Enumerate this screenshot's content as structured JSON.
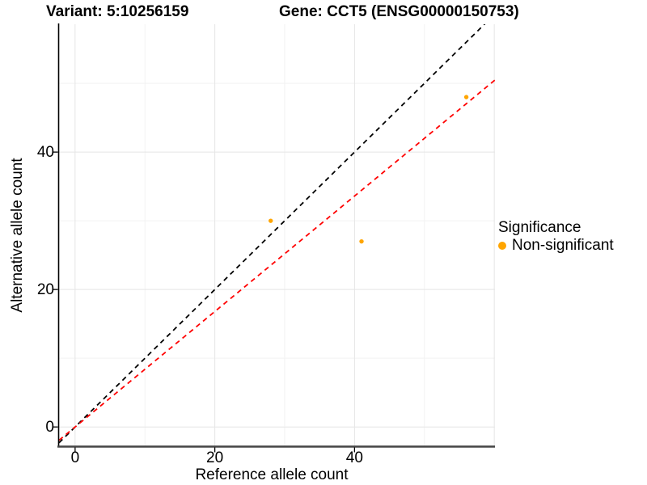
{
  "chart_data": {
    "type": "scatter",
    "title_variant": "Variant: 5:10256159",
    "title_gene": "Gene: CCT5 (ENSG00000150753)",
    "xlabel": "Reference allele count",
    "ylabel": "Alternative allele count",
    "xlim": [
      -2.3,
      60.1
    ],
    "ylim": [
      -2.8,
      58.6
    ],
    "x_ticks": [
      0,
      20,
      40
    ],
    "y_ticks": [
      0,
      20,
      40
    ],
    "x_minor_ticks": [
      10,
      30,
      50
    ],
    "y_minor_ticks": [
      10,
      30,
      50
    ],
    "grid": true,
    "series": [
      {
        "name": "Non-significant",
        "color": "#FFA500",
        "point_radius": 2.7,
        "points": [
          {
            "x": 28,
            "y": 30
          },
          {
            "x": 41,
            "y": 27
          },
          {
            "x": 56,
            "y": 48
          }
        ]
      }
    ],
    "reference_lines": [
      {
        "name": "identity-line",
        "slope": 1.0,
        "intercept": 0,
        "color": "#000000",
        "style": "dashed"
      },
      {
        "name": "allele-ratio-line",
        "slope": 0.84,
        "intercept": 0,
        "color": "#FF0000",
        "style": "dashed"
      }
    ],
    "legend": {
      "title": "Significance",
      "position": "right",
      "items": [
        {
          "label": "Non-significant",
          "color": "#FFA500"
        }
      ]
    }
  },
  "colors": {
    "grid_major": "#E5E5E5",
    "grid_minor": "#F2F2F2",
    "axis_line_left": "#000000",
    "axis_line_bottom": "#454545",
    "tick_mark": "#000000"
  }
}
